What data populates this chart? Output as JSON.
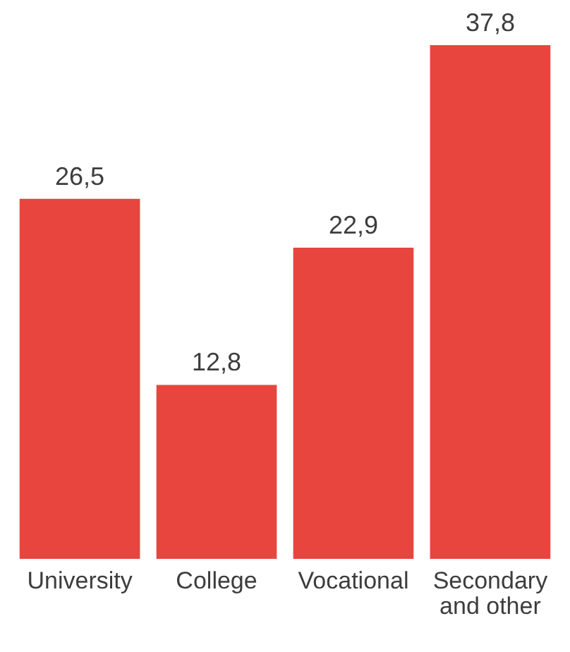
{
  "chart_data": {
    "type": "bar",
    "categories": [
      "University",
      "College",
      "Vocational",
      "Secondary and other"
    ],
    "values": [
      26.5,
      12.8,
      22.9,
      37.8
    ],
    "value_labels": [
      "26,5",
      "12,8",
      "22,9",
      "37,8"
    ],
    "color": "#e8453f"
  }
}
